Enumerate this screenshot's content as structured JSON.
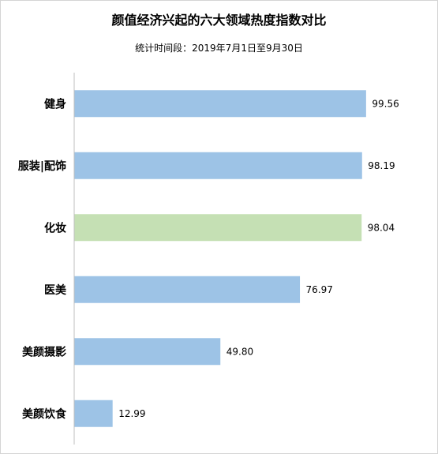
{
  "chart_data": {
    "type": "bar",
    "orientation": "horizontal",
    "title": "颜值经济兴起的六大领域热度指数对比",
    "subtitle": "统计时间段：2019年7月1日至9月30日",
    "categories": [
      "健身",
      "服装|配饰",
      "化妆",
      "医美",
      "美颜摄影",
      "美颜饮食"
    ],
    "values": [
      99.56,
      98.19,
      98.04,
      76.97,
      49.8,
      12.99
    ],
    "value_labels": [
      "99.56",
      "98.19",
      "98.04",
      "76.97",
      "49.80",
      "12.99"
    ],
    "bar_colors": [
      "#9dc3e6",
      "#9dc3e6",
      "#c5e0b4",
      "#9dc3e6",
      "#9dc3e6",
      "#9dc3e6"
    ],
    "xlim": [
      0,
      100
    ],
    "grid": false,
    "legend": "none"
  }
}
